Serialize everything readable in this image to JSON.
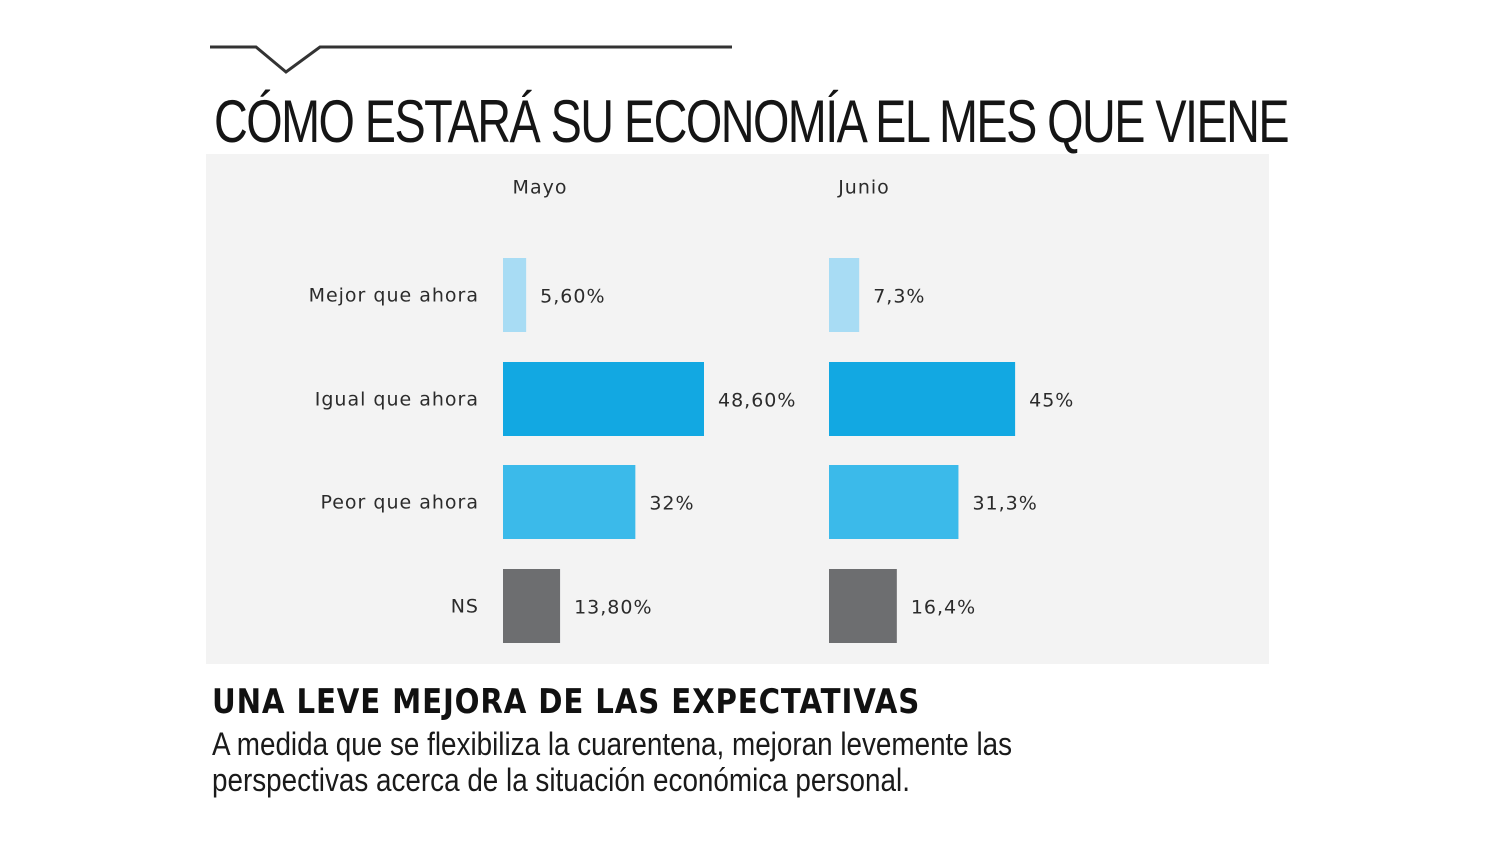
{
  "header": {
    "title": "CÓMO ESTARÁ SU ECONOMÍA EL MES QUE VIENE"
  },
  "footer": {
    "subtitle": "UNA LEVE MEJORA DE LAS EXPECTATIVAS",
    "caption_line1": "A medida que se flexibiliza la cuarentena, mejoran levemente las",
    "caption_line2": "perspectivas acerca de la situación económica personal."
  },
  "colors": {
    "mejor": "#a8dcf4",
    "igual": "#12a8e2",
    "peor": "#3bbaea",
    "ns": "#6d6e70"
  },
  "chart_data": [
    {
      "type": "bar",
      "orientation": "horizontal",
      "panel": "Mayo",
      "categories": [
        "Mejor que ahora",
        "Igual que ahora",
        "Peor que ahora",
        "NS"
      ],
      "values": [
        5.6,
        48.6,
        32,
        13.8
      ],
      "value_labels": [
        "5,60%",
        "48,60%",
        "32%",
        "13,80%"
      ]
    },
    {
      "type": "bar",
      "orientation": "horizontal",
      "panel": "Junio",
      "categories": [
        "Mejor que ahora",
        "Igual que ahora",
        "Peor que ahora",
        "NS"
      ],
      "values": [
        7.3,
        45,
        31.3,
        16.4
      ],
      "value_labels": [
        "7,3%",
        "45%",
        "31,3%",
        "16,4%"
      ]
    }
  ]
}
